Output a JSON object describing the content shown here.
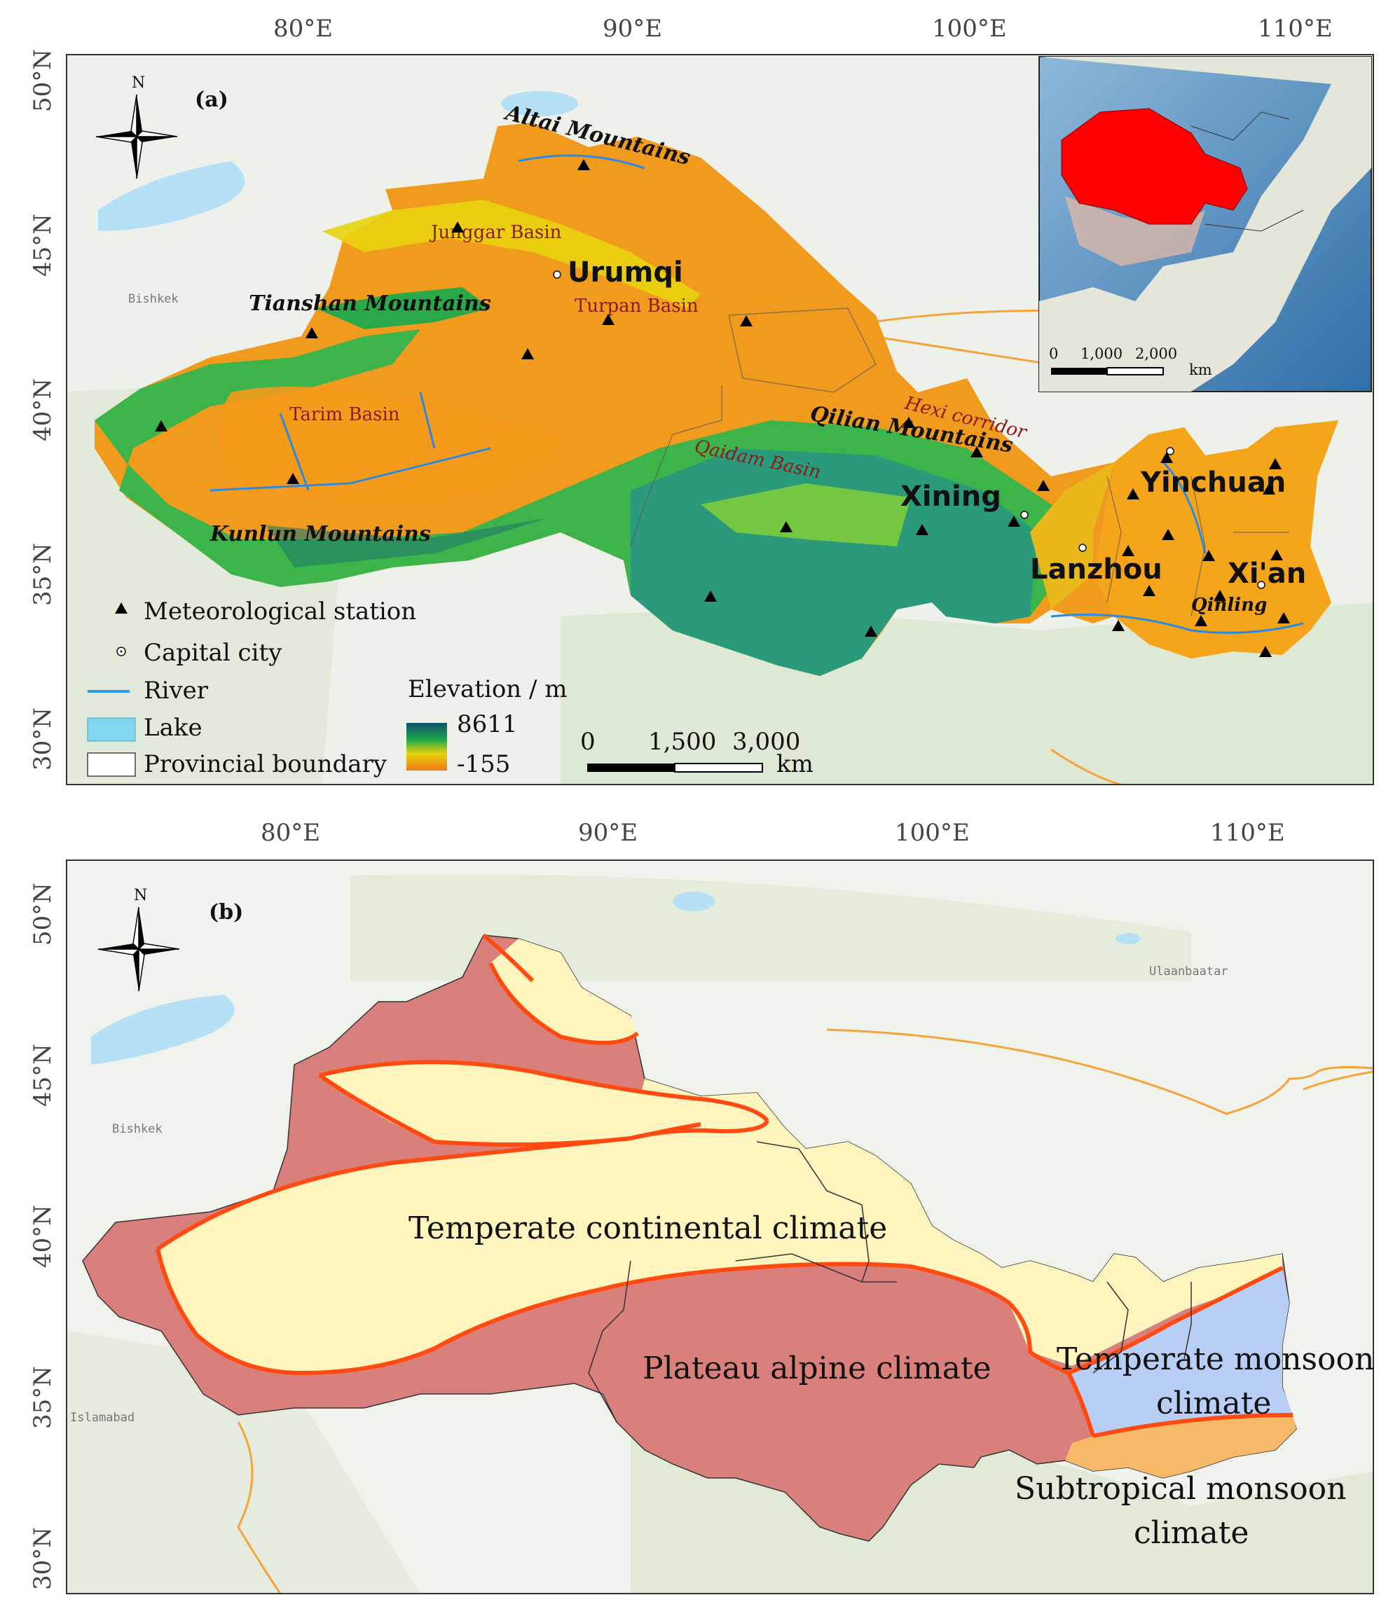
{
  "panel_a": {
    "label": "(a)",
    "north_label": "N",
    "lon_ticks": [
      "80°E",
      "90°E",
      "100°E",
      "110°E"
    ],
    "lat_ticks": [
      "50°N",
      "45°N",
      "40°N",
      "35°N",
      "30°N"
    ],
    "mountains": [
      "Altai Mountains",
      "Tianshan Mountains",
      "Kunlun Mountains",
      "Qilian Mountains",
      "Qinling"
    ],
    "basins": [
      "Junggar Basin",
      "Turpan Basin",
      "Tarim Basin",
      "Qaidam Basin",
      "Hexi corridor"
    ],
    "cities": [
      "Urumqi",
      "Xining",
      "Lanzhou",
      "Yinchuan",
      "Xi'an"
    ],
    "foreign_city": "Bishkek",
    "legend": {
      "station": "Meteorological station",
      "capital": "Capital city",
      "river": "River",
      "lake": "Lake",
      "boundary": "Provincial boundary",
      "elevation_title": "Elevation / m",
      "elevation_max": "8611",
      "elevation_min": "-155"
    },
    "scalebar": {
      "ticks": [
        "0",
        "1,500",
        "3,000"
      ],
      "unit": "km"
    },
    "inset_scalebar": {
      "ticks": [
        "0",
        "1,000",
        "2,000"
      ],
      "unit": "km"
    },
    "colors": {
      "low": "#f07a1a",
      "mid": "#f5c20a",
      "green": "#22b03a",
      "high": "#0d5a6b",
      "highlight": "#ff0000"
    }
  },
  "panel_b": {
    "label": "(b)",
    "north_label": "N",
    "lon_ticks": [
      "80°E",
      "90°E",
      "100°E",
      "110°E"
    ],
    "lat_ticks": [
      "50°N",
      "45°N",
      "40°N",
      "35°N",
      "30°N"
    ],
    "foreign_cities": [
      "Bishkek",
      "Ulaanbaatar",
      "Islamabad"
    ],
    "zones": {
      "temperate_continental": "Temperate continental climate",
      "plateau_alpine": "Plateau alpine climate",
      "temperate_monsoon_1": "Temperate monsoon",
      "temperate_monsoon_2": "climate",
      "subtropical_monsoon_1": "Subtropical monsoon",
      "subtropical_monsoon_2": "climate"
    },
    "colors": {
      "continental": "#fdf5bd",
      "alpine": "#d9807d",
      "temperate_monsoon": "#b8cef5",
      "subtropical_monsoon": "#f5b967",
      "boundary": "#ff4a12"
    }
  }
}
